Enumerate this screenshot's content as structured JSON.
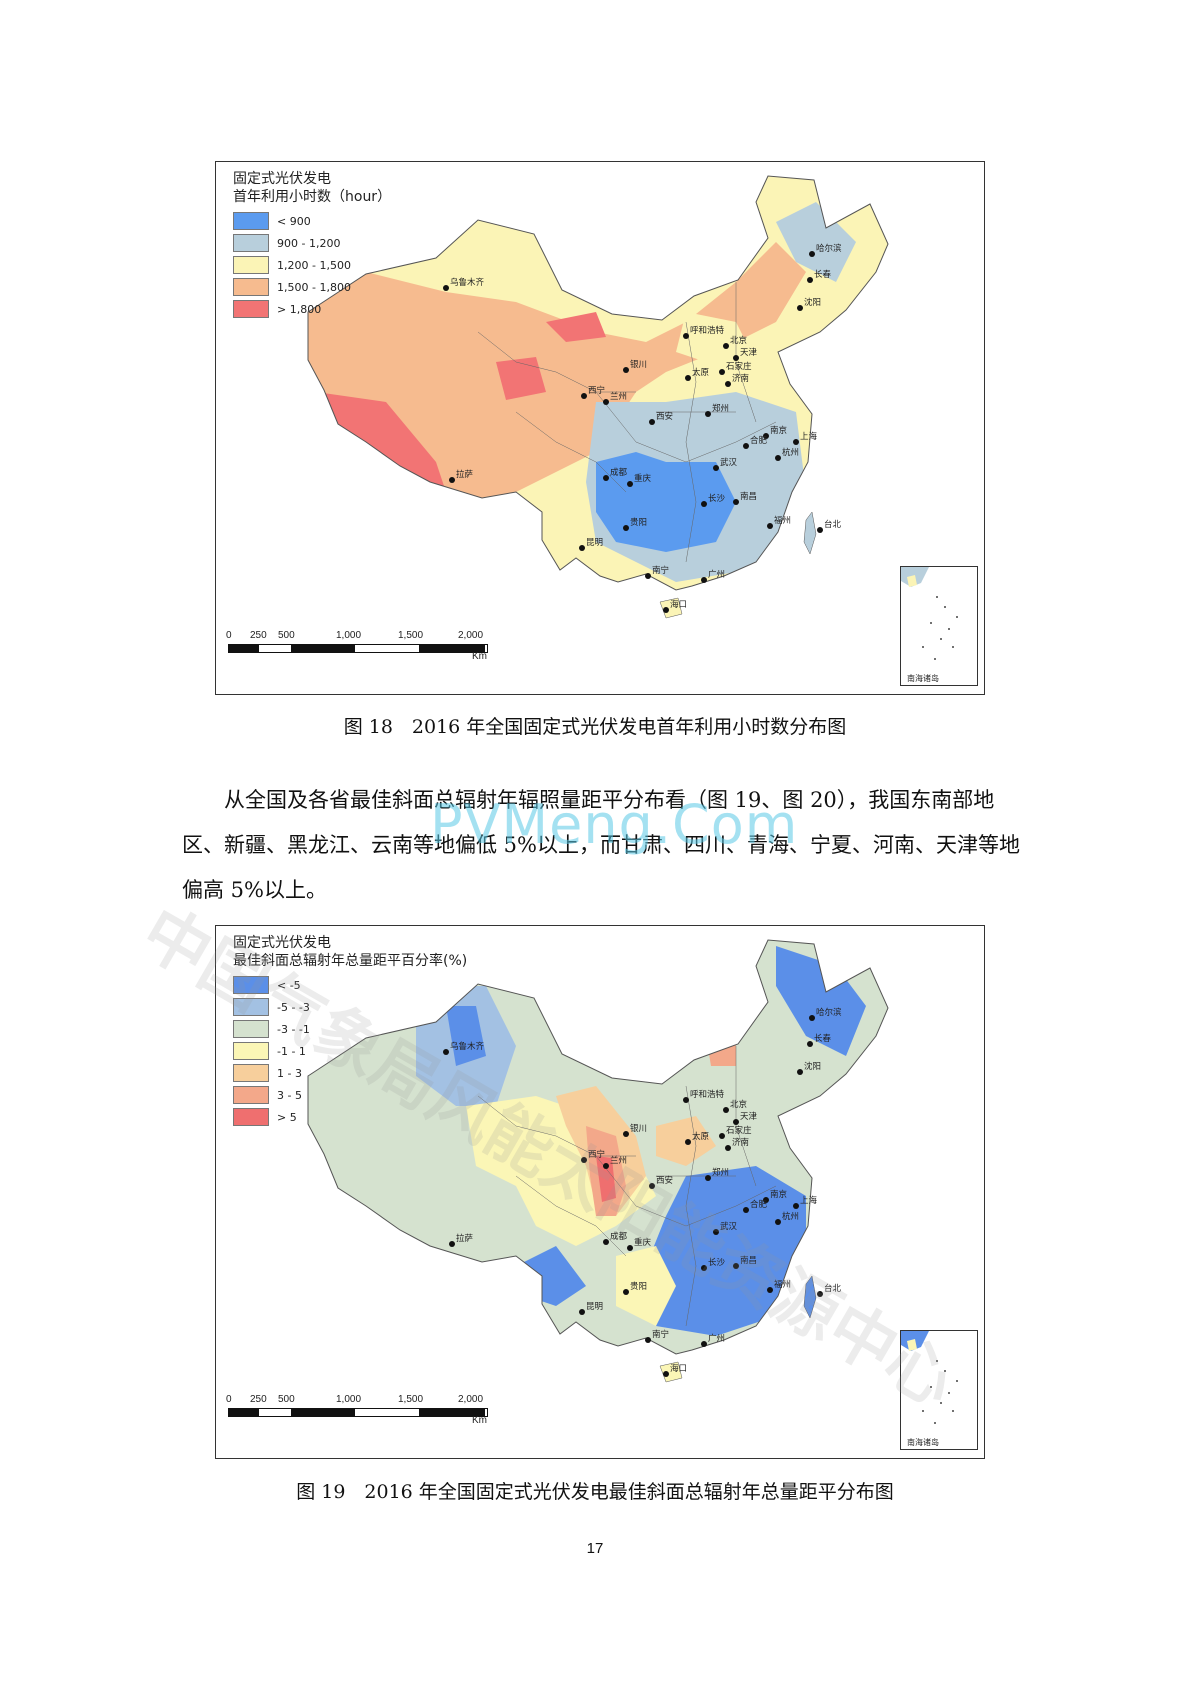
{
  "map1": {
    "legend_title_line1": "固定式光伏发电",
    "legend_title_line2": "首年利用小时数（hour）",
    "legend": [
      {
        "label": "< 900",
        "color": "#5b9bef"
      },
      {
        "label": "900 - 1,200",
        "color": "#b8cfdc"
      },
      {
        "label": "1,200 - 1,500",
        "color": "#fbf4b6"
      },
      {
        "label": "1,500 - 1,800",
        "color": "#f6bb8f"
      },
      {
        "label": "> 1,800",
        "color": "#f27474"
      }
    ],
    "cities": [
      "乌鲁木齐",
      "哈尔滨",
      "长春",
      "沈阳",
      "呼和浩特",
      "北京",
      "天津",
      "石家庄",
      "银川",
      "太原",
      "济南",
      "西宁",
      "兰州",
      "西安",
      "郑州",
      "南京",
      "合肥",
      "上海",
      "杭州",
      "武汉",
      "成都",
      "重庆",
      "拉萨",
      "长沙",
      "南昌",
      "福州",
      "台北",
      "贵阳",
      "昆明",
      "广州",
      "南宁",
      "海口"
    ]
  },
  "map2": {
    "legend_title_line1": "固定式光伏发电",
    "legend_title_line2": "最佳斜面总辐射年总量距平百分率(%)",
    "legend": [
      {
        "label": "< -5",
        "color": "#5b8fe8"
      },
      {
        "label": "-5 - -3",
        "color": "#a3c1e3"
      },
      {
        "label": "-3 - -1",
        "color": "#d5e2cf"
      },
      {
        "label": "-1 - 1",
        "color": "#fbf6b6"
      },
      {
        "label": "1 - 3",
        "color": "#f7cf9c"
      },
      {
        "label": "3 - 5",
        "color": "#f3a88a"
      },
      {
        "label": "> 5",
        "color": "#ef6f6f"
      }
    ],
    "cities": [
      "乌鲁木齐",
      "哈尔滨",
      "长春",
      "沈阳",
      "呼和浩特",
      "北京",
      "天津",
      "石家庄",
      "银川",
      "太原",
      "济南",
      "西宁",
      "兰州",
      "西安",
      "郑州",
      "南京",
      "合肥",
      "上海",
      "杭州",
      "武汉",
      "成都",
      "重庆",
      "拉萨",
      "长沙",
      "南昌",
      "福州",
      "台北",
      "贵阳",
      "昆明",
      "广州",
      "南宁",
      "海口"
    ]
  },
  "scalebar": {
    "ticks": [
      "0",
      "250",
      "500",
      "1,000",
      "1,500",
      "2,000"
    ],
    "unit": "Km"
  },
  "inset_label": "南海诸岛",
  "caption1": "图 18　2016 年全国固定式光伏发电首年利用小时数分布图",
  "caption2": "图 19　2016 年全国固定式光伏发电最佳斜面总辐射年总量距平分布图",
  "paragraph": "从全国及各省最佳斜面总辐射年辐照量距平分布看（图 19、图 20），我国东南部地区、新疆、黑龙江、云南等地偏低 5%以上，而甘肃、四川、青海、宁夏、河南、天津等地偏高 5%以上。",
  "watermark_site": "PVMeng.Com",
  "watermark_org": "中国气象局风能太阳能资源中心",
  "page_number": "17"
}
